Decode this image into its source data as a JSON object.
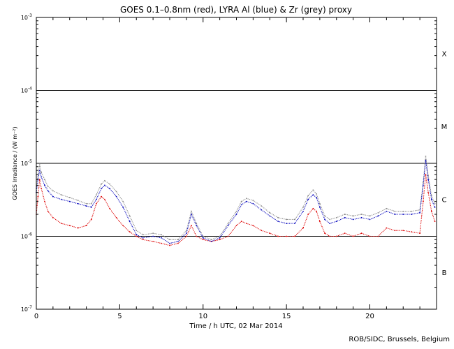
{
  "chart_data": {
    "type": "line",
    "title": "GOES 0.1–0.8nm (red), LYRA Al (blue) & Zr (grey) proxy",
    "xlabel": "Time / h UTC, 02 Mar 2014",
    "ylabel": "GOES Irradiance / (W m⁻²)",
    "xlim": [
      0,
      24
    ],
    "ylim": [
      1e-07,
      0.001
    ],
    "yscale": "log",
    "x_ticks": [
      0,
      5,
      10,
      15,
      20
    ],
    "y_ticks": [
      {
        "value": 1e-07,
        "mant": "10",
        "exp": "-7"
      },
      {
        "value": 1e-06,
        "mant": "10",
        "exp": "-6"
      },
      {
        "value": 1e-05,
        "mant": "10",
        "exp": "-5"
      },
      {
        "value": 0.0001,
        "mant": "10",
        "exp": "-4"
      },
      {
        "value": 0.001,
        "mant": "10",
        "exp": "-3"
      }
    ],
    "class_lines": [
      1e-06,
      1e-05,
      0.0001
    ],
    "class_labels": [
      {
        "label": "X",
        "value": 0.00032
      },
      {
        "label": "M",
        "value": 3.2e-05
      },
      {
        "label": "C",
        "value": 3.2e-06
      },
      {
        "label": "B",
        "value": 3.2e-07
      }
    ],
    "colors": {
      "red": "#dd0000",
      "blue": "#0000bb",
      "grey": "#888888"
    },
    "series": [
      {
        "color": "red",
        "x": [
          0.0,
          0.1,
          0.2,
          0.3,
          0.5,
          0.7,
          1.0,
          1.5,
          2.0,
          2.5,
          3.0,
          3.3,
          3.6,
          3.9,
          4.1,
          4.4,
          4.8,
          5.2,
          5.6,
          6.0,
          6.4,
          7.0,
          7.5,
          8.0,
          8.5,
          9.0,
          9.3,
          9.6,
          10.0,
          10.5,
          11.0,
          11.5,
          12.0,
          12.3,
          12.6,
          13.0,
          13.5,
          14.0,
          14.5,
          15.0,
          15.5,
          16.0,
          16.3,
          16.6,
          16.8,
          17.0,
          17.3,
          17.6,
          18.0,
          18.5,
          19.0,
          19.5,
          20.0,
          20.5,
          21.0,
          21.5,
          22.0,
          22.5,
          23.0,
          23.2,
          23.35,
          23.5,
          23.7,
          23.9
        ],
        "y": [
          2e-06,
          3.5e-06,
          6e-06,
          4.5e-06,
          3e-06,
          2.2e-06,
          1.8e-06,
          1.5e-06,
          1.4e-06,
          1.3e-06,
          1.4e-06,
          1.7e-06,
          2.8e-06,
          3.5e-06,
          3.2e-06,
          2.4e-06,
          1.8e-06,
          1.4e-06,
          1.15e-06,
          1e-06,
          9e-07,
          8.5e-07,
          8e-07,
          7.5e-07,
          8e-07,
          1e-06,
          1.4e-06,
          1e-06,
          9e-07,
          8.5e-07,
          9e-07,
          1e-06,
          1.4e-06,
          1.6e-06,
          1.5e-06,
          1.4e-06,
          1.2e-06,
          1.1e-06,
          1e-06,
          1e-06,
          1e-06,
          1.3e-06,
          2e-06,
          2.4e-06,
          2.2e-06,
          1.6e-06,
          1.1e-06,
          1e-06,
          1e-06,
          1.1e-06,
          1e-06,
          1.1e-06,
          1e-06,
          1e-06,
          1.3e-06,
          1.2e-06,
          1.2e-06,
          1.15e-06,
          1.1e-06,
          3e-06,
          7e-06,
          4e-06,
          2.2e-06,
          1.6e-06
        ]
      },
      {
        "color": "blue",
        "x": [
          0.0,
          0.1,
          0.2,
          0.3,
          0.5,
          0.7,
          1.0,
          1.5,
          2.0,
          2.5,
          3.0,
          3.3,
          3.6,
          3.9,
          4.1,
          4.4,
          4.8,
          5.2,
          5.6,
          6.0,
          6.4,
          7.0,
          7.5,
          8.0,
          8.5,
          9.0,
          9.3,
          9.6,
          10.0,
          10.5,
          11.0,
          11.5,
          12.0,
          12.3,
          12.6,
          13.0,
          13.5,
          14.0,
          14.5,
          15.0,
          15.5,
          16.0,
          16.3,
          16.6,
          16.8,
          17.0,
          17.3,
          17.6,
          18.0,
          18.5,
          19.0,
          19.5,
          20.0,
          20.5,
          21.0,
          21.5,
          22.0,
          22.5,
          23.0,
          23.2,
          23.35,
          23.5,
          23.7,
          23.9
        ],
        "y": [
          4e-06,
          6e-06,
          8e-06,
          6.5e-06,
          5e-06,
          4.2e-06,
          3.5e-06,
          3.2e-06,
          3e-06,
          2.8e-06,
          2.6e-06,
          2.5e-06,
          3.2e-06,
          4.5e-06,
          5e-06,
          4.5e-06,
          3.5e-06,
          2.5e-06,
          1.6e-06,
          1.05e-06,
          9.5e-07,
          1e-06,
          9.5e-07,
          8e-07,
          8.5e-07,
          1.1e-06,
          2e-06,
          1.4e-06,
          9.5e-07,
          8.5e-07,
          9.5e-07,
          1.4e-06,
          2e-06,
          2.7e-06,
          3e-06,
          2.8e-06,
          2.3e-06,
          1.9e-06,
          1.6e-06,
          1.5e-06,
          1.5e-06,
          2.2e-06,
          3.2e-06,
          3.7e-06,
          3.4e-06,
          2.5e-06,
          1.7e-06,
          1.5e-06,
          1.6e-06,
          1.8e-06,
          1.7e-06,
          1.8e-06,
          1.7e-06,
          1.9e-06,
          2.2e-06,
          2e-06,
          2e-06,
          2e-06,
          2.1e-06,
          5e-06,
          1.1e-05,
          6e-06,
          3.2e-06,
          2.5e-06
        ]
      },
      {
        "color": "grey",
        "x": [
          0.0,
          0.1,
          0.2,
          0.3,
          0.5,
          0.7,
          1.0,
          1.5,
          2.0,
          2.5,
          3.0,
          3.3,
          3.6,
          3.9,
          4.1,
          4.4,
          4.8,
          5.2,
          5.6,
          6.0,
          6.4,
          7.0,
          7.5,
          8.0,
          8.5,
          9.0,
          9.3,
          9.6,
          10.0,
          10.5,
          11.0,
          11.5,
          12.0,
          12.3,
          12.6,
          13.0,
          13.5,
          14.0,
          14.5,
          15.0,
          15.5,
          16.0,
          16.3,
          16.6,
          16.8,
          17.0,
          17.3,
          17.6,
          18.0,
          18.5,
          19.0,
          19.5,
          20.0,
          20.5,
          21.0,
          21.5,
          22.0,
          22.5,
          23.0,
          23.2,
          23.35,
          23.5,
          23.7,
          23.9
        ],
        "y": [
          4.5e-06,
          7e-06,
          9.5e-06,
          7.5e-06,
          6e-06,
          4.8e-06,
          4.2e-06,
          3.7e-06,
          3.4e-06,
          3.1e-06,
          2.8e-06,
          2.8e-06,
          3.7e-06,
          5.2e-06,
          5.8e-06,
          5.2e-06,
          4.1e-06,
          3e-06,
          1.9e-06,
          1.2e-06,
          1.05e-06,
          1.1e-06,
          1.05e-06,
          9e-07,
          9e-07,
          1.2e-06,
          2.2e-06,
          1.5e-06,
          1e-06,
          9e-07,
          1e-06,
          1.5e-06,
          2.2e-06,
          3e-06,
          3.3e-06,
          3.1e-06,
          2.6e-06,
          2.1e-06,
          1.8e-06,
          1.7e-06,
          1.7e-06,
          2.5e-06,
          3.6e-06,
          4.3e-06,
          3.8e-06,
          2.8e-06,
          1.9e-06,
          1.7e-06,
          1.8e-06,
          2e-06,
          1.9e-06,
          2e-06,
          1.9e-06,
          2.1e-06,
          2.4e-06,
          2.2e-06,
          2.2e-06,
          2.2e-06,
          2.3e-06,
          5.5e-06,
          1.25e-05,
          6.8e-06,
          3.6e-06,
          2.8e-06
        ]
      }
    ]
  },
  "credit": "ROB/SIDC, Brussels, Belgium"
}
